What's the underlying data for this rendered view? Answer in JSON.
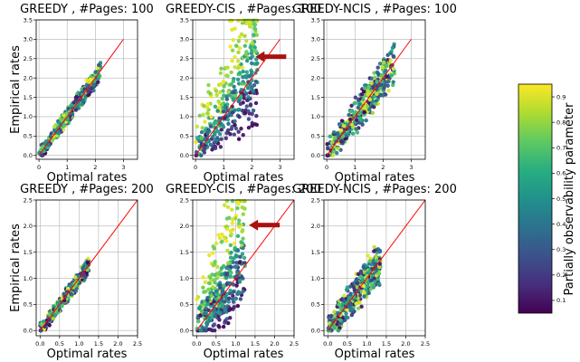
{
  "figure": {
    "colorbar": {
      "label": "Partially observability parameter",
      "ticks": [
        "0.1",
        "0.2",
        "0.3",
        "0.4",
        "0.5",
        "0.6",
        "0.7",
        "0.8",
        "0.9"
      ],
      "range": [
        0.05,
        0.95
      ],
      "colormap": "viridis"
    },
    "highlight_arrow_color": "#aa1111",
    "diagonal_color": "#ff0000"
  },
  "chart_data": [
    {
      "type": "scatter",
      "title": "GREEDY , #Pages: 100",
      "xlabel": "Optimal rates",
      "ylabel": "Empirical rates",
      "xlim": [
        -0.1,
        3.5
      ],
      "ylim": [
        -0.1,
        3.5
      ],
      "xticks": [
        "0",
        "1",
        "2",
        "3"
      ],
      "yticks": [
        "0.0",
        "0.5",
        "1.0",
        "1.5",
        "2.0",
        "2.5",
        "3.0",
        "3.5"
      ],
      "diagonal": [
        0,
        3
      ],
      "grid": true,
      "x_max": 2.2,
      "spread_low": 0.15,
      "spread_high": 0.2,
      "y_bias": 0.05,
      "arrow": null
    },
    {
      "type": "scatter",
      "title": "GREEDY-CIS , #Pages: 100",
      "xlabel": "Optimal rates",
      "ylabel": "",
      "xlim": [
        -0.1,
        3.5
      ],
      "ylim": [
        -0.1,
        3.5
      ],
      "xticks": [
        "0",
        "1",
        "2",
        "3"
      ],
      "yticks": [
        "0.0",
        "0.5",
        "1.0",
        "1.5",
        "2.0",
        "2.5",
        "3.0",
        "3.5"
      ],
      "diagonal": [
        0,
        3
      ],
      "grid": true,
      "x_max": 2.2,
      "spread_low": 0.6,
      "spread_high": 1.3,
      "y_bias": 0.1,
      "arrow": [
        2.0,
        2.55
      ]
    },
    {
      "type": "scatter",
      "title": "GREEDY-NCIS , #Pages: 100",
      "xlabel": "Optimal rates",
      "ylabel": "",
      "xlim": [
        -0.1,
        3.5
      ],
      "ylim": [
        -0.1,
        3.5
      ],
      "xticks": [
        "0",
        "1",
        "2",
        "3"
      ],
      "yticks": [
        "0.0",
        "0.5",
        "1.0",
        "1.5",
        "2.0",
        "2.5",
        "3.0",
        "3.5"
      ],
      "diagonal": [
        0,
        3
      ],
      "grid": true,
      "x_max": 2.4,
      "spread_low": 0.3,
      "spread_high": 0.45,
      "y_bias": 0.0,
      "arrow": null
    },
    {
      "type": "scatter",
      "title": "GREEDY , #Pages: 200",
      "xlabel": "Optimal rates",
      "ylabel": "Empirical rates",
      "xlim": [
        -0.1,
        2.5
      ],
      "ylim": [
        -0.1,
        2.5
      ],
      "xticks": [
        "0.0",
        "0.5",
        "1.0",
        "1.5",
        "2.0",
        "2.5"
      ],
      "yticks": [
        "0.0",
        "0.5",
        "1.0",
        "1.5",
        "2.0",
        "2.5"
      ],
      "diagonal": [
        0,
        2.5
      ],
      "grid": true,
      "x_max": 1.25,
      "spread_low": 0.1,
      "spread_high": 0.12,
      "y_bias": 0.02,
      "arrow": null
    },
    {
      "type": "scatter",
      "title": "GREEDY-CIS , #Pages: 200",
      "xlabel": "Optimal rates",
      "ylabel": "",
      "xlim": [
        -0.1,
        2.5
      ],
      "ylim": [
        -0.1,
        2.5
      ],
      "xticks": [
        "0.0",
        "0.5",
        "1.0",
        "1.5",
        "2.0",
        "2.5"
      ],
      "yticks": [
        "0.0",
        "0.5",
        "1.0",
        "1.5",
        "2.0",
        "2.5"
      ],
      "diagonal": [
        0,
        2.5
      ],
      "grid": true,
      "x_max": 1.25,
      "spread_low": 0.5,
      "spread_high": 1.2,
      "y_bias": 0.15,
      "arrow": [
        1.25,
        2.02
      ]
    },
    {
      "type": "scatter",
      "title": "GREEDY-NCIS , #Pages: 200",
      "xlabel": "Optimal rates",
      "ylabel": "",
      "xlim": [
        -0.1,
        2.5
      ],
      "ylim": [
        -0.1,
        2.5
      ],
      "xticks": [
        "0.0",
        "0.5",
        "1.0",
        "1.5",
        "2.0",
        "2.5"
      ],
      "yticks": [
        "0.0",
        "0.5",
        "1.0",
        "1.5",
        "2.0",
        "2.5"
      ],
      "diagonal": [
        0,
        2.5
      ],
      "grid": true,
      "x_max": 1.35,
      "spread_low": 0.2,
      "spread_high": 0.32,
      "y_bias": 0.0,
      "arrow": null
    }
  ]
}
